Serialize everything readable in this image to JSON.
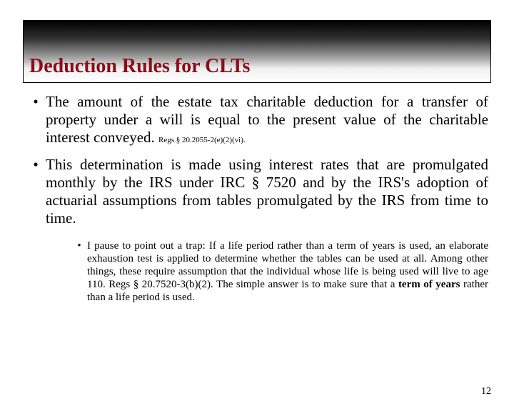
{
  "title": {
    "text": "Deduction Rules for CLTs",
    "color": "#8b0d18",
    "fontsize": 28
  },
  "bullets": {
    "level1_fontsize": 21,
    "level2_fontsize": 15,
    "b1": {
      "text": "The amount of the estate tax charitable deduction for a transfer of property under a will is equal to the present value of the charitable interest conveyed.",
      "cite": "Regs § 20.2055-2(e)(2)(vi)."
    },
    "b2": {
      "text": "This determination is made using interest rates that are promulgated monthly by the IRS under IRC § 7520 and by the IRS's adoption of actuarial assumptions from tables promulgated by the IRS from time to time."
    },
    "sub": {
      "pre": "I pause to point out a trap: If a life period rather than a term of years is used, an elaborate exhaustion test is applied to determine whether the tables can be used at all. Among other things, these require assumption that the individual whose life is being used will live to age 110. Regs § 20.7520-3(b)(2). The simple answer is to make sure that a ",
      "bold": "term of years",
      "post": " rather than a life period is used."
    }
  },
  "page_number": "12",
  "page_number_fontsize": 14,
  "colors": {
    "text": "#000000",
    "background": "#ffffff"
  }
}
